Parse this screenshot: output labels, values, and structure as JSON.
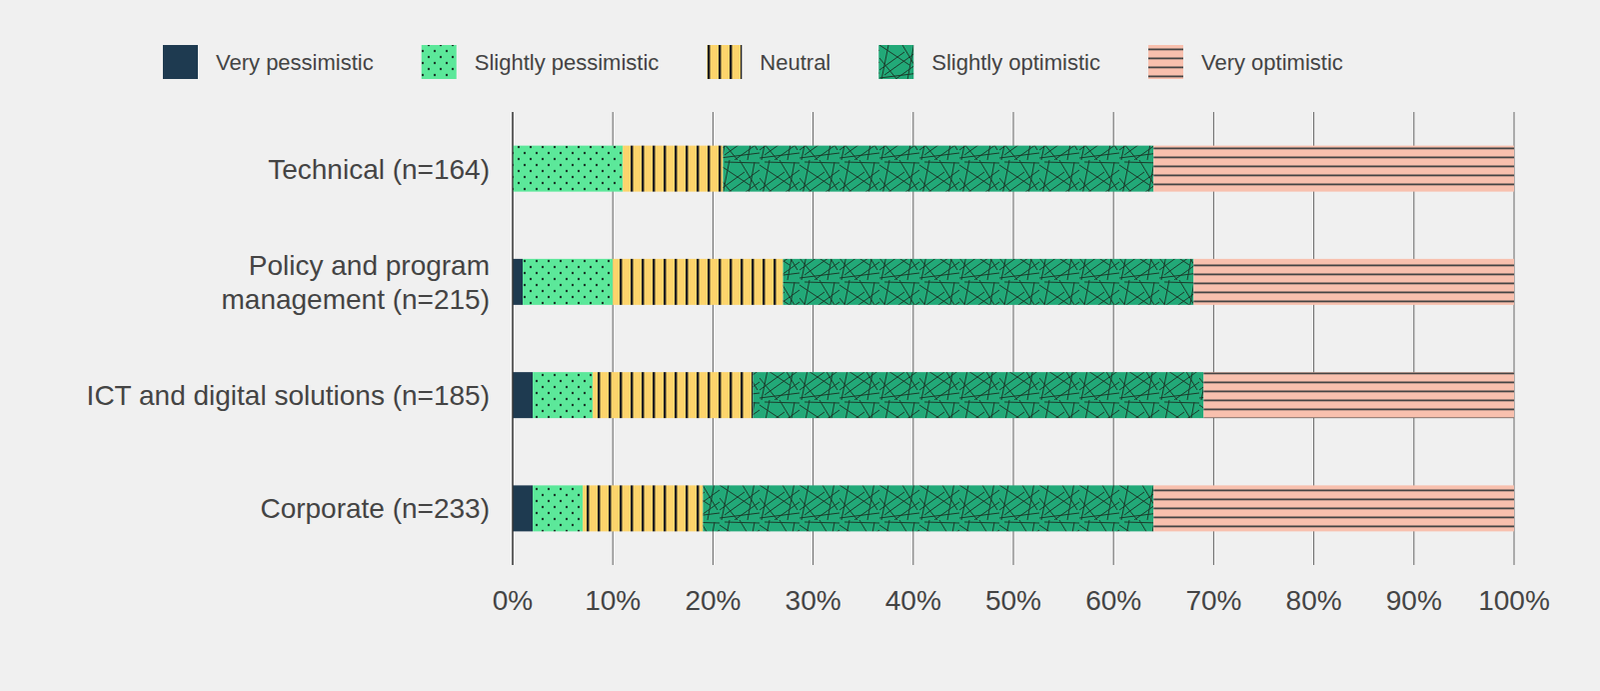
{
  "chart_data": {
    "type": "bar",
    "orientation": "horizontal",
    "stacked": true,
    "grid": true,
    "legend": "top",
    "categories": [
      "Technical (n=164)",
      "Policy and program\nmanagement (n=215)",
      "ICT and digital solutions (n=185)",
      "Corporate (n=233)"
    ],
    "series": [
      {
        "name": "Very pessimistic",
        "color": "#1e3a50",
        "values": [
          0,
          1,
          2,
          2
        ]
      },
      {
        "name": "Slightly pessimistic",
        "color": "#5ce89a",
        "values": [
          11,
          9,
          6,
          5
        ]
      },
      {
        "name": "Neutral",
        "color": "#fdd46c",
        "values": [
          10,
          17,
          16,
          12
        ]
      },
      {
        "name": "Slightly optimistic",
        "color": "#22a978",
        "values": [
          43,
          41,
          45,
          45
        ]
      },
      {
        "name": "Very optimistic",
        "color": "#f8c0ae",
        "values": [
          36,
          32,
          31,
          36
        ]
      }
    ],
    "xlim": [
      0,
      100
    ],
    "xticks": [
      {
        "value": 0,
        "label": "0%"
      },
      {
        "value": 10,
        "label": "10%"
      },
      {
        "value": 20,
        "label": "20%"
      },
      {
        "value": 30,
        "label": "30%"
      },
      {
        "value": 40,
        "label": "40%"
      },
      {
        "value": 50,
        "label": "50%"
      },
      {
        "value": 60,
        "label": "60%"
      },
      {
        "value": 70,
        "label": "70%"
      },
      {
        "value": 80,
        "label": "80%"
      },
      {
        "value": 90,
        "label": "90%"
      },
      {
        "value": 100,
        "label": "100%"
      }
    ]
  }
}
